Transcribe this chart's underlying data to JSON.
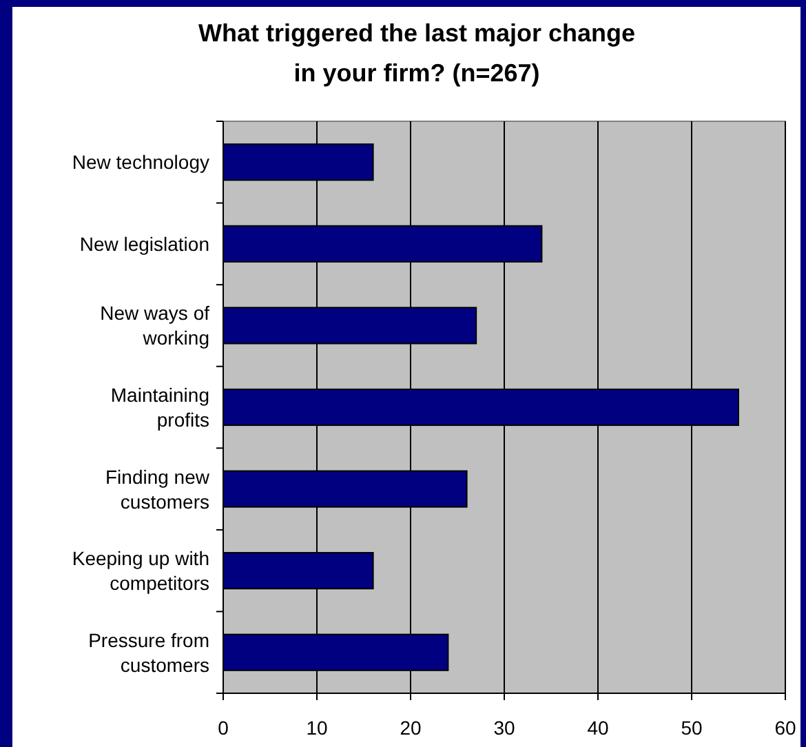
{
  "chart_data": {
    "type": "bar",
    "orientation": "horizontal",
    "title": "What triggered the last major change in your firm? (n=267)",
    "categories": [
      "New technology",
      "New legislation",
      "New ways of working",
      "Maintaining profits",
      "Finding new customers",
      "Keeping up with competitors",
      "Pressure from customers"
    ],
    "values": [
      16,
      34,
      27,
      55,
      26,
      16,
      24
    ],
    "color": "#000080",
    "xlim": [
      0,
      60
    ],
    "xticks": [
      0,
      10,
      20,
      30,
      40,
      50,
      60
    ],
    "grid": "x"
  }
}
